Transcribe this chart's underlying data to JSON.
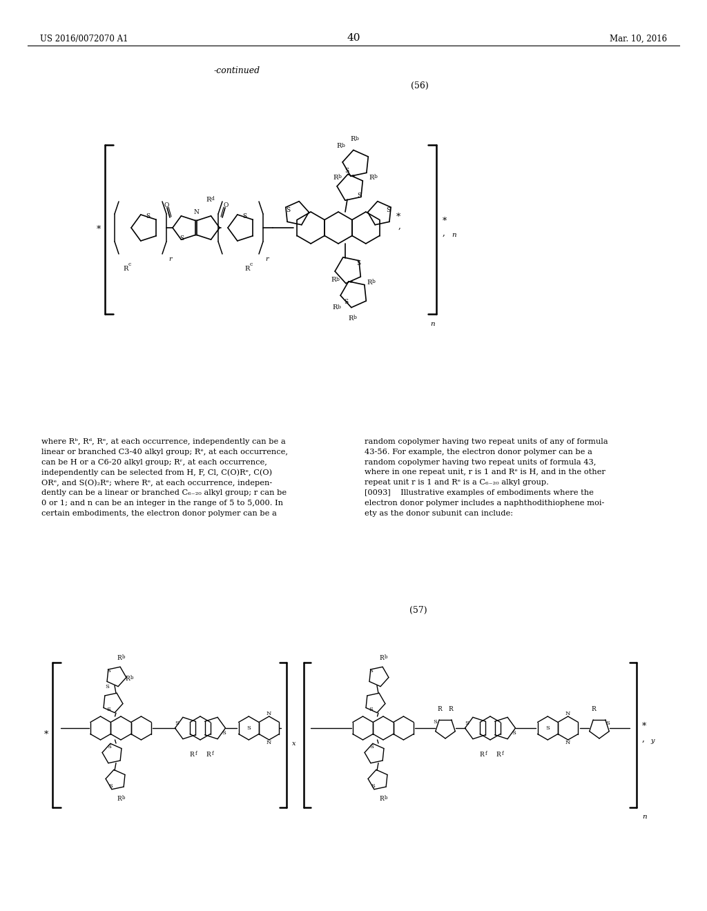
{
  "page_number": "40",
  "continued_label": "-continued",
  "header_left": "US 2016/0072070 A1",
  "header_right": "Mar. 10, 2016",
  "compound_56_label": "(56)",
  "compound_57_label": "(57)",
  "background_color": "#ffffff",
  "text_color": "#000000"
}
